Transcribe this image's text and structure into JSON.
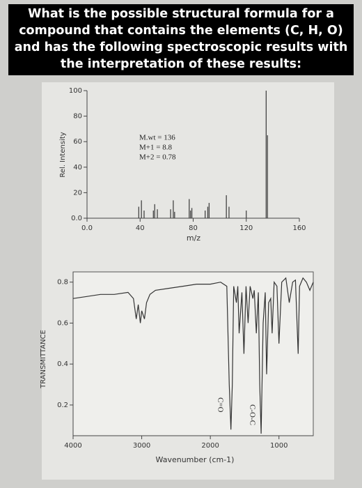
{
  "title": "What is the possible structural formula for a compound that contains the elements (C, H, O) and has the following spectroscopic results with the interpretation of these results:",
  "chart_data": [
    {
      "type": "bar",
      "x_label": "m/z",
      "y_label": "Rel. Intensity",
      "annotations": [
        "M.wt = 136",
        "M+1 = 8.8",
        "M+2 = 0.78"
      ],
      "x": [
        39,
        41,
        43,
        50,
        51,
        53,
        63,
        65,
        66,
        77,
        78,
        79,
        89,
        91,
        92,
        105,
        107,
        120,
        135,
        136
      ],
      "values": [
        9,
        14,
        6,
        6,
        11,
        7,
        7,
        14,
        5,
        15,
        6,
        8,
        6,
        9,
        12,
        18,
        9,
        6,
        100,
        65
      ],
      "color": "#444444",
      "xlim": [
        0,
        160
      ],
      "xticks": [
        {
          "value": 0,
          "label": "0.0"
        },
        40,
        80,
        120,
        160
      ],
      "ylim": [
        0,
        100
      ],
      "yticks": [
        {
          "value": 0,
          "label": "0.0"
        },
        20,
        40,
        60,
        80,
        100
      ]
    },
    {
      "type": "line",
      "x_label": "Wavenumber (cm-1)",
      "y_label": "TRANSMITTANCE",
      "annotations": [
        "C=O",
        "C-O-C"
      ],
      "x": [
        4000,
        3800,
        3600,
        3400,
        3200,
        3120,
        3080,
        3050,
        3020,
        3000,
        2960,
        2930,
        2880,
        2800,
        2600,
        2400,
        2200,
        2000,
        1850,
        1760,
        1725,
        1700,
        1680,
        1660,
        1620,
        1600,
        1580,
        1540,
        1510,
        1480,
        1450,
        1420,
        1380,
        1360,
        1330,
        1300,
        1280,
        1260,
        1230,
        1200,
        1180,
        1150,
        1120,
        1100,
        1070,
        1030,
        1000,
        960,
        900,
        850,
        800,
        760,
        720,
        700,
        650,
        600,
        550,
        500
      ],
      "values": [
        0.72,
        0.73,
        0.74,
        0.74,
        0.75,
        0.72,
        0.62,
        0.69,
        0.6,
        0.66,
        0.62,
        0.7,
        0.74,
        0.76,
        0.77,
        0.78,
        0.79,
        0.79,
        0.8,
        0.78,
        0.3,
        0.08,
        0.3,
        0.78,
        0.7,
        0.78,
        0.55,
        0.75,
        0.45,
        0.78,
        0.6,
        0.78,
        0.72,
        0.76,
        0.55,
        0.75,
        0.3,
        0.06,
        0.6,
        0.75,
        0.35,
        0.7,
        0.72,
        0.55,
        0.8,
        0.78,
        0.5,
        0.8,
        0.82,
        0.7,
        0.8,
        0.81,
        0.45,
        0.78,
        0.82,
        0.8,
        0.76,
        0.8
      ],
      "color": "#333333",
      "xlim": [
        4000,
        500
      ],
      "xticks": [
        4000,
        3000,
        2000,
        1000
      ],
      "ylim": [
        0.05,
        0.85
      ],
      "yticks": [
        0.2,
        0.4,
        0.6,
        0.8
      ]
    }
  ]
}
